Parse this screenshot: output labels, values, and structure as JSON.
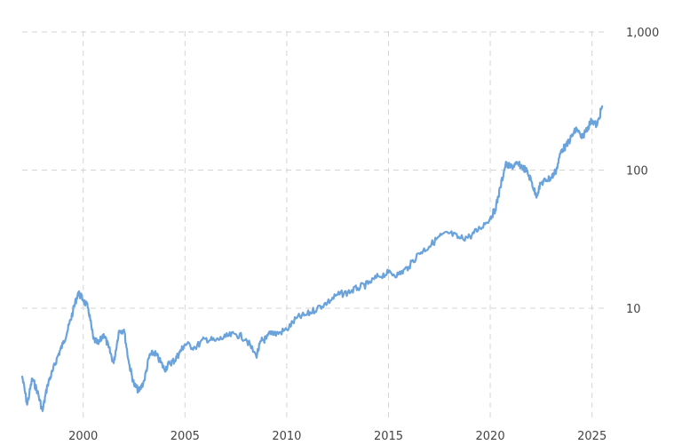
{
  "chart_data": {
    "type": "line",
    "title": "",
    "xlabel": "",
    "ylabel": "",
    "x_scale": "time",
    "y_scale": "log",
    "xlim": [
      "1997-01-01",
      "2025-08-01"
    ],
    "ylim": [
      1.5,
      1000
    ],
    "grid": true,
    "legend": "none",
    "x_ticks": [
      "2000",
      "2005",
      "2010",
      "2015",
      "2020",
      "2025"
    ],
    "y_ticks": [
      "10",
      "100",
      "1,000"
    ],
    "colors": {
      "line": "#6aa3dc",
      "grid": "#d5d5d5",
      "text": "#444444"
    },
    "series": [
      {
        "x": [
          "1997-01-01",
          "1997-04-01",
          "1997-07-01",
          "1997-10-01",
          "1998-01-01",
          "1998-04-01",
          "1998-07-01",
          "1998-10-01",
          "1999-01-01",
          "1999-04-01",
          "1999-07-01",
          "1999-10-01",
          "2000-01-01",
          "2000-04-01",
          "2000-07-01",
          "2000-10-01",
          "2001-01-01",
          "2001-04-01",
          "2001-07-01",
          "2001-10-01",
          "2002-01-01",
          "2002-04-01",
          "2002-07-01",
          "2002-10-01",
          "2003-01-01",
          "2003-04-01",
          "2003-07-01",
          "2003-10-01",
          "2004-01-01",
          "2004-04-01",
          "2004-07-01",
          "2004-10-01",
          "2005-01-01",
          "2005-07-01",
          "2006-01-01",
          "2006-07-01",
          "2007-01-01",
          "2007-07-01",
          "2008-01-01",
          "2008-07-01",
          "2008-10-01",
          "2009-01-01",
          "2009-04-01",
          "2009-07-01",
          "2010-01-01",
          "2010-07-01",
          "2011-01-01",
          "2011-07-01",
          "2012-01-01",
          "2012-07-01",
          "2013-01-01",
          "2013-07-01",
          "2014-01-01",
          "2014-07-01",
          "2015-01-01",
          "2015-07-01",
          "2016-01-01",
          "2016-07-01",
          "2017-01-01",
          "2017-07-01",
          "2018-01-01",
          "2018-07-01",
          "2019-01-01",
          "2019-07-01",
          "2020-01-01",
          "2020-04-01",
          "2020-07-01",
          "2020-10-01",
          "2021-01-01",
          "2021-04-01",
          "2021-07-01",
          "2021-10-01",
          "2022-01-01",
          "2022-04-01",
          "2022-07-01",
          "2022-10-01",
          "2023-01-01",
          "2023-04-01",
          "2023-07-01",
          "2023-10-01",
          "2024-01-01",
          "2024-04-01",
          "2024-07-01",
          "2024-10-01",
          "2025-01-01",
          "2025-04-01",
          "2025-07-01"
        ],
        "values": [
          3.2,
          2.0,
          3.1,
          2.5,
          1.8,
          2.8,
          3.5,
          4.5,
          5.5,
          7.0,
          9.5,
          13.0,
          11.5,
          10.0,
          6.0,
          5.5,
          6.5,
          5.2,
          4.0,
          6.8,
          7.0,
          4.0,
          2.8,
          2.5,
          3.0,
          4.5,
          4.8,
          4.2,
          3.6,
          4.0,
          4.2,
          4.8,
          5.5,
          5.2,
          6.0,
          5.8,
          6.2,
          6.5,
          6.0,
          4.5,
          5.8,
          6.0,
          6.8,
          6.5,
          7.0,
          8.5,
          9.0,
          10.0,
          11.0,
          12.5,
          13.0,
          14.0,
          15.0,
          17.0,
          18.0,
          17.5,
          20.0,
          25.0,
          28.0,
          33.0,
          35.0,
          32.0,
          33.0,
          38.0,
          45.0,
          52.0,
          75.0,
          110.0,
          105.0,
          110.0,
          108.0,
          100.0,
          85.0,
          65.0,
          80.0,
          85.0,
          88.0,
          100.0,
          140.0,
          150.0,
          175.0,
          200.0,
          170.0,
          200.0,
          230.0,
          210.0,
          290.0
        ]
      }
    ]
  }
}
